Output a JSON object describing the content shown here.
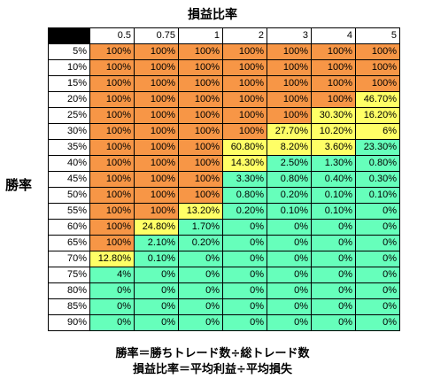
{
  "title": "損益比率",
  "row_axis_label": "勝率",
  "footer": [
    "勝率＝勝ちトレード数÷総トレード数",
    "損益比率＝平均利益÷平均損失"
  ],
  "colors": {
    "high": "#f79646",
    "mid": "#ffff66",
    "low": "#66ffbb"
  },
  "columns": [
    "0.5",
    "0.75",
    "1",
    "2",
    "3",
    "4",
    "5"
  ],
  "rows": [
    {
      "label": "5%",
      "cells": [
        "100%",
        "100%",
        "100%",
        "100%",
        "100%",
        "100%",
        "100%"
      ]
    },
    {
      "label": "10%",
      "cells": [
        "100%",
        "100%",
        "100%",
        "100%",
        "100%",
        "100%",
        "100%"
      ]
    },
    {
      "label": "15%",
      "cells": [
        "100%",
        "100%",
        "100%",
        "100%",
        "100%",
        "100%",
        "100%"
      ]
    },
    {
      "label": "20%",
      "cells": [
        "100%",
        "100%",
        "100%",
        "100%",
        "100%",
        "100%",
        "46.70%"
      ]
    },
    {
      "label": "25%",
      "cells": [
        "100%",
        "100%",
        "100%",
        "100%",
        "100%",
        "30.30%",
        "16.20%"
      ]
    },
    {
      "label": "30%",
      "cells": [
        "100%",
        "100%",
        "100%",
        "100%",
        "27.70%",
        "10.20%",
        "6%"
      ]
    },
    {
      "label": "35%",
      "cells": [
        "100%",
        "100%",
        "100%",
        "60.80%",
        "8.20%",
        "3.60%",
        "23.30%"
      ]
    },
    {
      "label": "40%",
      "cells": [
        "100%",
        "100%",
        "100%",
        "14.30%",
        "2.50%",
        "1.30%",
        "0.80%"
      ]
    },
    {
      "label": "45%",
      "cells": [
        "100%",
        "100%",
        "100%",
        "3.30%",
        "0.80%",
        "0.40%",
        "0.30%"
      ]
    },
    {
      "label": "50%",
      "cells": [
        "100%",
        "100%",
        "100%",
        "0.80%",
        "0.20%",
        "0.10%",
        "0.10%"
      ]
    },
    {
      "label": "55%",
      "cells": [
        "100%",
        "100%",
        "13.20%",
        "0.20%",
        "0.10%",
        "0.10%",
        "0%"
      ]
    },
    {
      "label": "60%",
      "cells": [
        "100%",
        "24.80%",
        "1.70%",
        "0%",
        "0%",
        "0%",
        "0%"
      ]
    },
    {
      "label": "65%",
      "cells": [
        "100%",
        "2.10%",
        "0.20%",
        "0%",
        "0%",
        "0%",
        "0%"
      ]
    },
    {
      "label": "70%",
      "cells": [
        "12.80%",
        "0.10%",
        "0%",
        "0%",
        "0%",
        "0%",
        "0%"
      ]
    },
    {
      "label": "75%",
      "cells": [
        "4%",
        "0%",
        "0%",
        "0%",
        "0%",
        "0%",
        "0%"
      ]
    },
    {
      "label": "80%",
      "cells": [
        "0%",
        "0%",
        "0%",
        "0%",
        "0%",
        "0%",
        "0%"
      ]
    },
    {
      "label": "85%",
      "cells": [
        "0%",
        "0%",
        "0%",
        "0%",
        "0%",
        "0%",
        "0%"
      ]
    },
    {
      "label": "90%",
      "cells": [
        "0%",
        "0%",
        "0%",
        "0%",
        "0%",
        "0%",
        "0%"
      ]
    }
  ],
  "cell_class": [
    [
      "high",
      "high",
      "high",
      "high",
      "high",
      "high",
      "high"
    ],
    [
      "high",
      "high",
      "high",
      "high",
      "high",
      "high",
      "high"
    ],
    [
      "high",
      "high",
      "high",
      "high",
      "high",
      "high",
      "high"
    ],
    [
      "high",
      "high",
      "high",
      "high",
      "high",
      "high",
      "mid"
    ],
    [
      "high",
      "high",
      "high",
      "high",
      "high",
      "mid",
      "mid"
    ],
    [
      "high",
      "high",
      "high",
      "high",
      "mid",
      "mid",
      "mid"
    ],
    [
      "high",
      "high",
      "high",
      "mid",
      "mid",
      "mid",
      "low"
    ],
    [
      "high",
      "high",
      "high",
      "mid",
      "low",
      "low",
      "low"
    ],
    [
      "high",
      "high",
      "high",
      "low",
      "low",
      "low",
      "low"
    ],
    [
      "high",
      "high",
      "high",
      "low",
      "low",
      "low",
      "low"
    ],
    [
      "high",
      "high",
      "mid",
      "low",
      "low",
      "low",
      "low"
    ],
    [
      "high",
      "mid",
      "low",
      "low",
      "low",
      "low",
      "low"
    ],
    [
      "high",
      "low",
      "low",
      "low",
      "low",
      "low",
      "low"
    ],
    [
      "mid",
      "low",
      "low",
      "low",
      "low",
      "low",
      "low"
    ],
    [
      "low",
      "low",
      "low",
      "low",
      "low",
      "low",
      "low"
    ],
    [
      "low",
      "low",
      "low",
      "low",
      "low",
      "low",
      "low"
    ],
    [
      "low",
      "low",
      "low",
      "low",
      "low",
      "low",
      "low"
    ],
    [
      "low",
      "low",
      "low",
      "low",
      "low",
      "low",
      "low"
    ]
  ]
}
